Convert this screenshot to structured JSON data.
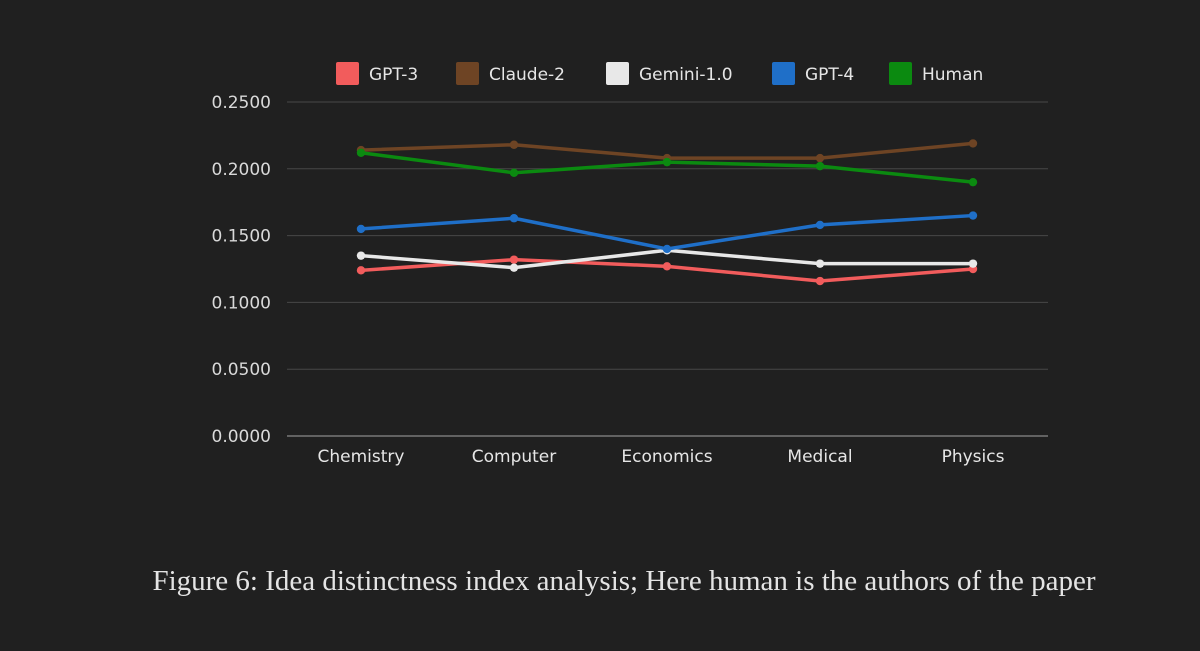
{
  "chart_data": {
    "type": "line",
    "title": "",
    "xlabel": "",
    "ylabel": "",
    "categories": [
      "Chemistry",
      "Computer",
      "Economics",
      "Medical",
      "Physics"
    ],
    "ylim": [
      0,
      0.25
    ],
    "yticks": [
      0,
      0.05,
      0.1,
      0.15,
      0.2,
      0.25
    ],
    "ytick_labels": [
      "0.0000",
      "0.0500",
      "0.1000",
      "0.1500",
      "0.2000",
      "0.2500"
    ],
    "grid": true,
    "legend_position": "top",
    "series": [
      {
        "name": "GPT-3",
        "color": "#f25c5c",
        "values": [
          0.124,
          0.132,
          0.127,
          0.116,
          0.125
        ]
      },
      {
        "name": "Claude-2",
        "color": "#6e4424",
        "values": [
          0.214,
          0.218,
          0.208,
          0.208,
          0.219
        ]
      },
      {
        "name": "Gemini-1.0",
        "color": "#e8e8e8",
        "values": [
          0.135,
          0.126,
          0.139,
          0.129,
          0.129
        ]
      },
      {
        "name": "GPT-4",
        "color": "#1f6fc8",
        "values": [
          0.155,
          0.163,
          0.14,
          0.158,
          0.165
        ]
      },
      {
        "name": "Human",
        "color": "#0b8a10",
        "values": [
          0.212,
          0.197,
          0.205,
          0.202,
          0.19
        ]
      }
    ]
  },
  "caption": "Figure 6: Idea distinctness index analysis; Here human is the authors of the paper"
}
